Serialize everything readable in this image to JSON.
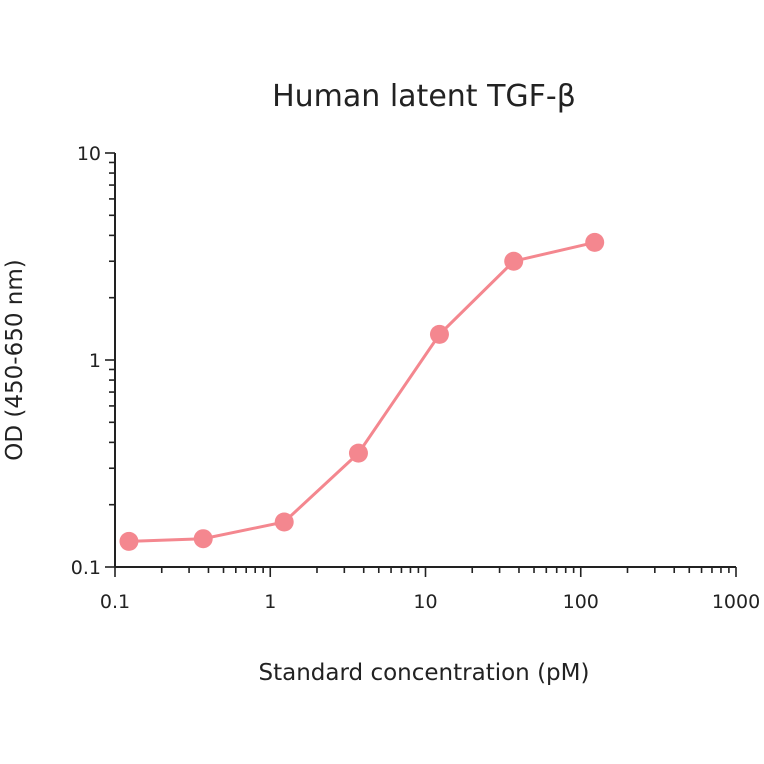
{
  "chart_data": {
    "type": "line",
    "title": "Human latent TGF-β",
    "xlabel": "Standard concentration (pM)",
    "ylabel": "OD (450-650 nm)",
    "x_scale": "log",
    "y_scale": "log",
    "xlim": [
      0.1,
      1000
    ],
    "ylim": [
      0.1,
      10
    ],
    "x_ticks": [
      "0.1",
      "1",
      "10",
      "100",
      "1000"
    ],
    "y_ticks": [
      "0.1",
      "1",
      "10"
    ],
    "grid": false,
    "series": [
      {
        "color": "#f4878f",
        "x": [
          0.123,
          0.37,
          1.23,
          3.7,
          12.3,
          37,
          123
        ],
        "y": [
          0.133,
          0.137,
          0.165,
          0.355,
          1.33,
          3.0,
          3.7
        ]
      }
    ]
  }
}
